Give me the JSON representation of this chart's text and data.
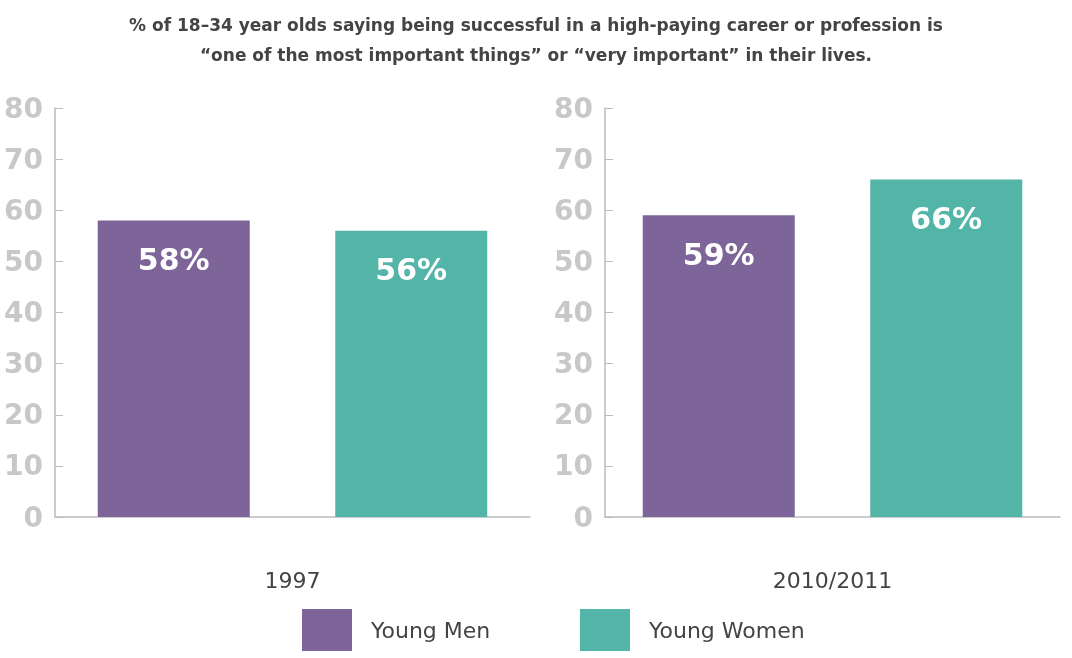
{
  "chart_data": [
    {
      "type": "bar",
      "title": "% of 18–34 year olds saying being successful in a high-paying career or profession is “one of the most important things” or “very important” in their lives.",
      "xlabel": "1997",
      "categories": [
        null,
        null
      ],
      "series": [
        {
          "name": "Young Men",
          "color": "#7d6499",
          "values": [
            58,
            null
          ],
          "value_labels": [
            "58%",
            null
          ]
        },
        {
          "color": "#52b5a8",
          "values": [
            null,
            56
          ],
          "value_labels": [
            null,
            "56%"
          ]
        }
      ],
      "ylim": [
        0,
        80
      ],
      "yticks": [
        0,
        10,
        20,
        30,
        40,
        50,
        60,
        70,
        80
      ],
      "grid": false,
      "legend": "bottom right"
    },
    {
      "type": "bar",
      "xlabel": "2010/2011",
      "categories": [
        null,
        null
      ],
      "series": [
        {
          "color": "#7d6499",
          "values": [
            59,
            null
          ],
          "value_labels": [
            "59%",
            null
          ]
        },
        {
          "name": "Young Women",
          "color": "#52b5a8",
          "values": [
            null,
            66
          ],
          "value_labels": [
            null,
            "66%"
          ]
        }
      ],
      "ylim": [
        0,
        80
      ],
      "yticks": [
        0,
        10,
        20,
        30,
        40,
        50,
        60,
        70,
        80
      ],
      "grid": false,
      "legend": "bottom left"
    }
  ]
}
